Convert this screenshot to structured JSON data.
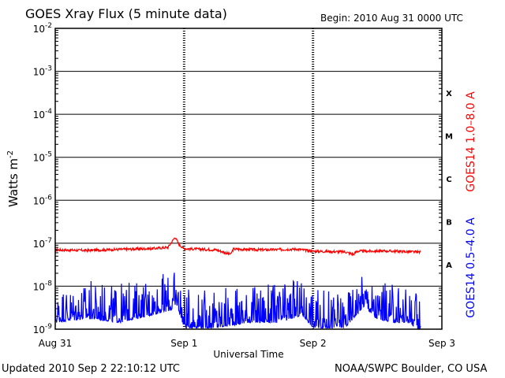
{
  "header": {
    "title": "GOES Xray Flux (5 minute data)",
    "begin": "Begin:  2010 Aug 31 0000 UTC"
  },
  "footer": {
    "updated": "Updated 2010 Sep  2 22:10:12 UTC",
    "credit": "NOAA/SWPC Boulder, CO USA"
  },
  "chart_data": {
    "type": "line",
    "title": "GOES Xray Flux (5 minute data)",
    "xlabel": "Universal Time",
    "ylabel": "Watts m",
    "ylabel_superscript": "-2",
    "yscale": "log",
    "ylim": [
      1e-09,
      0.01
    ],
    "y_ticks": [
      {
        "base": "10",
        "exp": "-2",
        "value": 0.01
      },
      {
        "base": "10",
        "exp": "-3",
        "value": 0.001
      },
      {
        "base": "10",
        "exp": "-4",
        "value": 0.0001
      },
      {
        "base": "10",
        "exp": "-5",
        "value": 1e-05
      },
      {
        "base": "10",
        "exp": "-6",
        "value": 1e-06
      },
      {
        "base": "10",
        "exp": "-7",
        "value": 1e-07
      },
      {
        "base": "10",
        "exp": "-8",
        "value": 1e-08
      },
      {
        "base": "10",
        "exp": "-9",
        "value": 1e-09
      }
    ],
    "xlim": [
      "2010-08-31T00:00",
      "2010-09-03T00:00"
    ],
    "x_ticks": [
      {
        "label": "Aug 31",
        "value": "2010-08-31T00:00"
      },
      {
        "label": "Sep 1",
        "value": "2010-09-01T00:00"
      },
      {
        "label": "Sep 2",
        "value": "2010-09-02T00:00"
      },
      {
        "label": "Sep 3",
        "value": "2010-09-03T00:00"
      }
    ],
    "flare_classes": [
      {
        "label": "X",
        "value": 0.0001
      },
      {
        "label": "M",
        "value": 1e-05
      },
      {
        "label": "C",
        "value": 1e-06
      },
      {
        "label": "B",
        "value": 1e-07
      },
      {
        "label": "A",
        "value": 1e-08
      }
    ],
    "grid": true,
    "series": [
      {
        "name": "GOES14 1.0–8.0 A",
        "color": "#ff0000",
        "x": [
          "2010-08-31T00:00",
          "2010-08-31T06:00",
          "2010-08-31T12:00",
          "2010-08-31T18:00",
          "2010-08-31T21:00",
          "2010-08-31T22:20",
          "2010-08-31T23:00",
          "2010-09-01T00:00",
          "2010-09-01T06:00",
          "2010-09-01T08:40",
          "2010-09-01T09:10",
          "2010-09-01T15:00",
          "2010-09-01T21:00",
          "2010-09-02T00:00",
          "2010-09-02T06:00",
          "2010-09-02T07:30",
          "2010-09-02T08:10",
          "2010-09-02T14:00",
          "2010-09-02T20:00"
        ],
        "y": [
          7e-08,
          6.8e-08,
          7.2e-08,
          7.5e-08,
          8e-08,
          1.4e-07,
          9.5e-08,
          7.5e-08,
          7e-08,
          5.5e-08,
          7.3e-08,
          7e-08,
          7.3e-08,
          6.5e-08,
          6.3e-08,
          5.5e-08,
          6.5e-08,
          6.6e-08,
          6.2e-08
        ]
      },
      {
        "name": "GOES14 0.5–4.0 A",
        "color": "#0000ff",
        "x": [
          "2010-08-31T00:00",
          "2010-08-31T06:00",
          "2010-08-31T12:00",
          "2010-08-31T18:00",
          "2010-08-31T22:00",
          "2010-08-31T22:40",
          "2010-09-01T00:00",
          "2010-09-01T06:00",
          "2010-09-01T12:00",
          "2010-09-01T18:00",
          "2010-09-01T22:00",
          "2010-09-02T00:00",
          "2010-09-02T06:00",
          "2010-09-02T09:40",
          "2010-09-02T11:30",
          "2010-09-02T15:00",
          "2010-09-02T18:00",
          "2010-09-02T20:00"
        ],
        "y": [
          2e-09,
          2.5e-09,
          2e-09,
          3e-09,
          4e-09,
          5e-09,
          1.5e-09,
          1.5e-09,
          2e-09,
          2e-09,
          3e-09,
          1.5e-09,
          1.5e-09,
          5e-09,
          2.5e-09,
          2e-09,
          2e-09,
          1.2e-09
        ]
      }
    ]
  }
}
